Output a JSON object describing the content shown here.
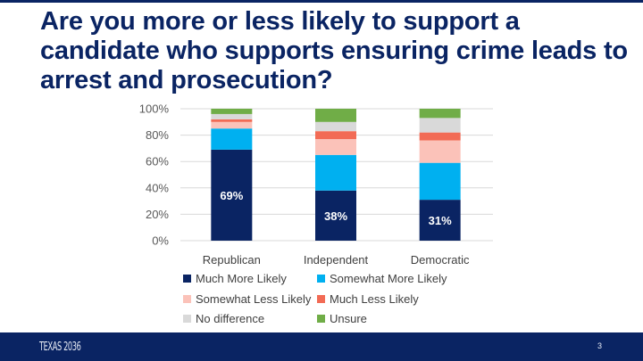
{
  "title": "Are you more or less likely to support a candidate who supports ensuring crime leads to arrest and prosecution?",
  "footer": {
    "logo": "TEXAS 2036",
    "page_number": "3"
  },
  "chart_data": {
    "type": "bar",
    "stacked": true,
    "categories": [
      "Republican",
      "Independent",
      "Democratic"
    ],
    "ylim": [
      0,
      100
    ],
    "yticks": [
      "0%",
      "20%",
      "40%",
      "60%",
      "80%",
      "100%"
    ],
    "grid": true,
    "legend_position": "bottom",
    "series": [
      {
        "name": "Much More Likely",
        "color": "#0a2463",
        "values": [
          69,
          38,
          31
        ],
        "labels": [
          "69%",
          "38%",
          "31%"
        ]
      },
      {
        "name": "Somewhat More Likely",
        "color": "#00b0f0",
        "values": [
          16,
          27,
          28
        ]
      },
      {
        "name": "Somewhat Less Likely",
        "color": "#fbc2b9",
        "values": [
          5,
          12,
          17
        ]
      },
      {
        "name": "Much Less Likely",
        "color": "#f26b55",
        "values": [
          2,
          6,
          6
        ]
      },
      {
        "name": "No difference",
        "color": "#d9d9d9",
        "values": [
          4,
          7,
          11
        ]
      },
      {
        "name": "Unsure",
        "color": "#70ad47",
        "values": [
          4,
          10,
          7
        ]
      }
    ]
  }
}
